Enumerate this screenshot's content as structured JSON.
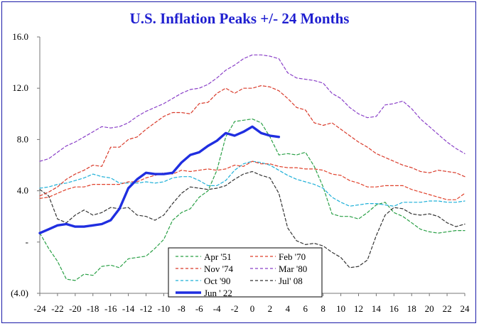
{
  "chart_data": {
    "type": "line",
    "title": "U.S. Inflation Peaks +/- 24 Months",
    "xlabel": "",
    "ylabel": "",
    "xlim": [
      -24,
      24
    ],
    "ylim": [
      -4,
      16
    ],
    "x_ticks": [
      "-24",
      "-22",
      "-20",
      "-18",
      "-16",
      "-14",
      "-12",
      "-10",
      "-8",
      "-6",
      "-4",
      "-2",
      "0",
      "2",
      "4",
      "6",
      "8",
      "10",
      "12",
      "14",
      "16",
      "18",
      "20",
      "22",
      "24"
    ],
    "y_ticks": [
      {
        "value": 16,
        "label": "16.0"
      },
      {
        "value": 12,
        "label": "12.0"
      },
      {
        "value": 8,
        "label": "8.0"
      },
      {
        "value": 4,
        "label": "4.0"
      },
      {
        "value": 0,
        "label": "-"
      },
      {
        "value": -4,
        "label": "(4.0)"
      }
    ],
    "grid": false,
    "legend_position": "bottom-center",
    "series": [
      {
        "name": "Apr '51",
        "color": "#2aa046",
        "style": "dashed",
        "width": 1.2,
        "start_x": -24,
        "values": [
          0.7,
          -0.5,
          -1.5,
          -2.9,
          -3.0,
          -2.5,
          -2.6,
          -1.9,
          -1.8,
          -2.0,
          -1.3,
          -1.2,
          -1.1,
          -0.5,
          0.2,
          1.7,
          2.3,
          2.6,
          3.5,
          4.0,
          5.6,
          8.2,
          9.4,
          9.5,
          9.6,
          9.3,
          8.2,
          6.8,
          6.9,
          6.8,
          7.0,
          5.9,
          4.3,
          2.2,
          2.0,
          2.0,
          1.8,
          2.3,
          2.9,
          3.1,
          2.3,
          2.0,
          1.5,
          1.0,
          0.8,
          0.7,
          0.8,
          0.9,
          0.9
        ]
      },
      {
        "name": "Feb '70",
        "color": "#e0402a",
        "style": "dashed",
        "width": 1.2,
        "start_x": -24,
        "values": [
          3.4,
          3.5,
          3.8,
          4.1,
          4.3,
          4.3,
          4.5,
          4.5,
          4.5,
          4.5,
          4.7,
          4.7,
          5.0,
          5.2,
          5.4,
          5.3,
          5.6,
          5.5,
          5.6,
          5.7,
          5.6,
          5.7,
          6.0,
          5.9,
          6.3,
          6.1,
          6.1,
          5.9,
          5.8,
          5.8,
          5.7,
          5.7,
          5.6,
          5.3,
          5.2,
          4.8,
          4.6,
          4.3,
          4.3,
          4.4,
          4.4,
          4.4,
          4.1,
          3.9,
          3.7,
          3.5,
          3.3,
          3.3,
          3.8
        ]
      },
      {
        "name": "Nov '74",
        "color": "#d93a2a",
        "style": "dashed",
        "width": 1.2,
        "start_x": -24,
        "values": [
          3.6,
          3.9,
          4.3,
          4.9,
          5.3,
          5.6,
          6.0,
          5.9,
          7.4,
          7.4,
          8.0,
          8.2,
          8.8,
          9.3,
          9.8,
          10.1,
          10.1,
          10.0,
          10.8,
          10.9,
          11.6,
          12.0,
          11.6,
          12.0,
          12.0,
          12.2,
          12.1,
          11.8,
          11.2,
          10.5,
          10.3,
          9.3,
          9.1,
          9.3,
          8.8,
          8.3,
          7.8,
          7.4,
          6.9,
          6.6,
          6.3,
          6.0,
          5.8,
          5.5,
          5.4,
          5.6,
          5.5,
          5.4,
          5.1
        ]
      },
      {
        "name": "Mar '80",
        "color": "#8a40c8",
        "style": "dashed",
        "width": 1.2,
        "start_x": -24,
        "values": [
          6.3,
          6.5,
          7.0,
          7.5,
          7.8,
          8.2,
          8.6,
          9.0,
          8.9,
          9.0,
          9.3,
          9.8,
          10.2,
          10.5,
          10.8,
          11.2,
          11.6,
          11.9,
          12.0,
          12.3,
          12.8,
          13.4,
          13.8,
          14.3,
          14.6,
          14.6,
          14.5,
          14.3,
          13.2,
          12.8,
          12.7,
          12.6,
          12.4,
          11.6,
          11.2,
          10.5,
          10.0,
          9.7,
          9.8,
          10.7,
          10.8,
          11.0,
          10.4,
          9.6,
          9.0,
          8.4,
          7.8,
          7.3,
          6.9
        ]
      },
      {
        "name": "Oct '90",
        "color": "#1fb0d8",
        "style": "dashed",
        "width": 1.2,
        "start_x": -24,
        "values": [
          4.2,
          4.3,
          4.5,
          4.6,
          4.8,
          5.0,
          5.3,
          5.1,
          5.0,
          4.6,
          4.6,
          4.6,
          4.7,
          4.6,
          4.7,
          5.0,
          5.1,
          5.1,
          4.8,
          4.4,
          4.4,
          4.8,
          5.6,
          6.1,
          6.3,
          6.2,
          6.0,
          5.6,
          5.2,
          4.9,
          4.7,
          4.5,
          4.2,
          3.5,
          3.1,
          2.8,
          2.9,
          3.0,
          3.0,
          2.9,
          2.8,
          3.1,
          3.1,
          3.1,
          3.2,
          3.2,
          3.1,
          3.1,
          3.2
        ]
      },
      {
        "name": "Jul '08",
        "color": "#333333",
        "style": "dashed",
        "width": 1.2,
        "start_x": -24,
        "values": [
          4.1,
          3.6,
          1.8,
          1.5,
          2.1,
          2.5,
          2.1,
          2.3,
          2.7,
          2.6,
          2.7,
          2.1,
          2.0,
          1.7,
          2.1,
          3.0,
          3.8,
          4.3,
          4.2,
          4.1,
          4.2,
          4.4,
          4.9,
          5.3,
          5.5,
          5.2,
          5.0,
          3.8,
          1.1,
          0.1,
          -0.2,
          -0.1,
          -0.3,
          -0.8,
          -1.2,
          -2.0,
          -1.9,
          -1.4,
          0.5,
          2.1,
          2.7,
          2.6,
          2.2,
          2.1,
          2.2,
          2.0,
          1.5,
          1.2,
          1.4
        ]
      },
      {
        "name": "Jun ' 22",
        "color": "#1f2ee0",
        "style": "solid",
        "width": 3.4,
        "start_x": -24,
        "values": [
          0.7,
          1.0,
          1.3,
          1.4,
          1.2,
          1.2,
          1.3,
          1.4,
          1.7,
          2.6,
          4.2,
          4.9,
          5.4,
          5.3,
          5.3,
          5.4,
          6.2,
          6.8,
          7.0,
          7.5,
          7.9,
          8.5,
          8.3,
          8.6,
          9.0,
          8.5,
          8.3,
          8.2
        ]
      }
    ],
    "legend_rows": [
      [
        "Apr '51",
        "Feb '70"
      ],
      [
        "Nov '74",
        "Mar '80"
      ],
      [
        "Oct '90",
        "Jul' 08"
      ],
      [
        "Jun ' 22",
        ""
      ]
    ]
  }
}
